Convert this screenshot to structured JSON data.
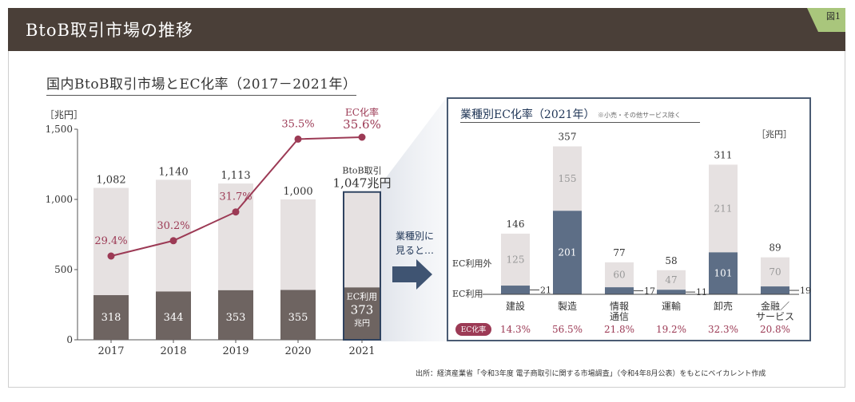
{
  "header": {
    "title": "BtoB取引市場の推移",
    "figure_label": "図1"
  },
  "left": {
    "title": "国内BtoB取引市場とEC化率（2017－2021年）",
    "unit": "［兆円］"
  },
  "callout": {
    "ratio_title": "EC化率",
    "ratio_value": "35.6%",
    "total_label": "BtoB取引",
    "total_value": "1,047兆円",
    "ec_label": "EC利用",
    "ec_value": "373",
    "ec_unit": "兆円"
  },
  "arrow_text": {
    "line1": "業種別に",
    "line2": "見ると…"
  },
  "right": {
    "title": "業種別EC化率（2021年）",
    "note": "※小売・その他サービス除く",
    "unit": "［兆円］",
    "label_other": "EC利用外",
    "label_ec": "EC利用",
    "rate_badge": "EC化率"
  },
  "caption": "出所：経済産業省「令和3年度 電子商取引に関する市場調査」（令和4年8月公表）をもとにベイカレント作成",
  "colors": {
    "ec": "#6e6461",
    "non_ec": "#e6e1e1",
    "line": "#9c3a55",
    "ec_industry": "#5d6e86",
    "badge": "#9c3a55",
    "header": "#4a3f38"
  },
  "chart_data": [
    {
      "type": "bar",
      "categories": [
        "2017",
        "2018",
        "2019",
        "2020",
        "2021"
      ],
      "series": [
        {
          "name": "EC利用",
          "values": [
            318,
            344,
            353,
            355,
            373
          ]
        },
        {
          "name": "EC利用外",
          "values": [
            764,
            796,
            760,
            645,
            674
          ]
        }
      ],
      "totals": [
        1082,
        1140,
        1113,
        1000,
        1047
      ],
      "total_labels": [
        "1,082",
        "1,140",
        "1,113",
        "1,000",
        "1,047兆円"
      ],
      "line_series": {
        "name": "EC化率",
        "values": [
          29.4,
          30.2,
          31.7,
          35.5,
          35.6
        ],
        "labels": [
          "29.4%",
          "30.2%",
          "31.7%",
          "35.5%",
          "35.6%"
        ]
      },
      "ylabel": "兆円",
      "ylim": [
        0,
        1500
      ],
      "yticks": [
        0,
        500,
        1000,
        1500
      ],
      "ytick_labels": [
        "0",
        "500",
        "1,000",
        "1,500"
      ],
      "stacked": true,
      "grid": false
    },
    {
      "type": "bar",
      "title": "業種別EC化率（2021年）",
      "categories": [
        "建設",
        "製造",
        "情報通信",
        "運輸",
        "卸売",
        "金融／サービス"
      ],
      "category_lines": [
        [
          "建設"
        ],
        [
          "製造"
        ],
        [
          "情報",
          "通信"
        ],
        [
          "運輸"
        ],
        [
          "卸売"
        ],
        [
          "金融／",
          "サービス"
        ]
      ],
      "series": [
        {
          "name": "EC利用",
          "values": [
            21,
            201,
            17,
            11,
            101,
            19
          ]
        },
        {
          "name": "EC利用外",
          "values": [
            125,
            155,
            60,
            47,
            211,
            70
          ]
        }
      ],
      "totals": [
        146,
        357,
        77,
        58,
        311,
        89
      ],
      "ec_rate": [
        "14.3%",
        "56.5%",
        "21.8%",
        "19.2%",
        "32.3%",
        "20.8%"
      ],
      "ylabel": "兆円",
      "stacked": true,
      "grid": false
    }
  ]
}
